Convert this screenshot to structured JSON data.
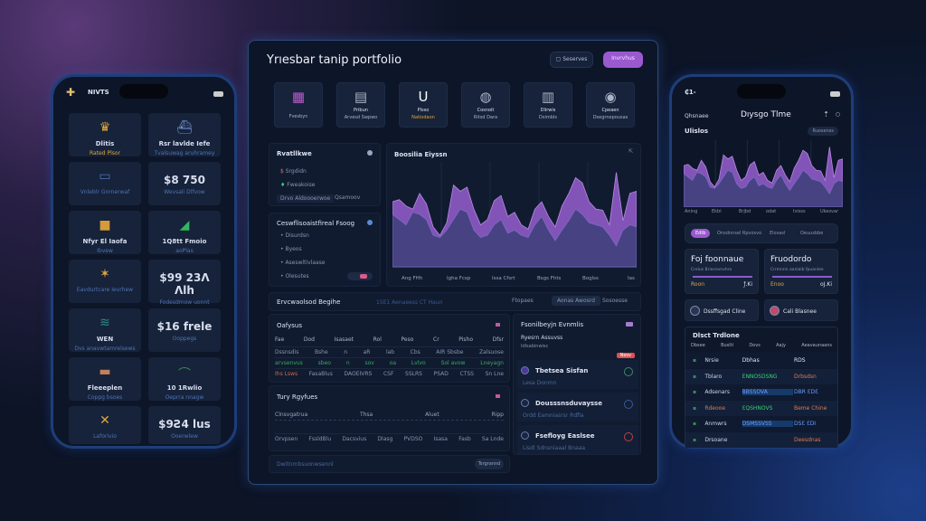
{
  "left_phone": {
    "app_name": "NIVTS",
    "tiles": [
      {
        "title": "Dlitis",
        "sub": "Rated Plsor",
        "icon": "crown-icon",
        "color": "#e0a63a"
      },
      {
        "title": "Rsr lavlde Iefe",
        "sub": "Tvalsuwag aruhramey",
        "icon": "ship-icon",
        "color": "#6f8ccb"
      },
      {
        "title": "",
        "sub": "Vnleblr Gnrnerwaf",
        "icon": "laptop-icon",
        "color": "#4f73b8"
      },
      {
        "title": "$8 750",
        "sub": "Wevsali Dlfvow",
        "icon": "",
        "color": "#fff"
      },
      {
        "title": "Nfyr El Iaofa",
        "sub": "Ibvew",
        "icon": "box-icon",
        "color": "#d59a3a"
      },
      {
        "title": "1Q8tt Fmoio",
        "sub": "aoPlas",
        "icon": "chart-icon",
        "color": "#2fb860"
      },
      {
        "title": "",
        "sub": "Eavdurtcare Ievrhew",
        "icon": "star-icon",
        "color": "#e0a63a"
      },
      {
        "title": "$99 23Λ Λlh",
        "sub": "Fodesdmow uonnt",
        "icon": "",
        "color": "#fff"
      },
      {
        "title": "WEN",
        "sub": "Dvs anavwtamrelsews",
        "icon": "wave-icon",
        "color": "#2f8a8a"
      },
      {
        "title": "$16 frele",
        "sub": "Ooppegs",
        "icon": "",
        "color": "#fff"
      },
      {
        "title": "Fleeeplen",
        "sub": "Coppg bsoes",
        "icon": "bar-icon",
        "color": "#c08060"
      },
      {
        "title": "10 1Rwlio",
        "sub": "Oeprra nnagw",
        "icon": "hill-icon",
        "color": "#3a8a5a"
      },
      {
        "title": "",
        "sub": "Laforivio",
        "icon": "knot-icon",
        "color": "#e0a63a"
      },
      {
        "title": "$9Ƨ4 lus",
        "sub": "Ooerwlew",
        "icon": "",
        "color": "#fff"
      }
    ]
  },
  "main": {
    "title": "Yrıesbar tanip portfolio",
    "btn_secondary": "Seserves",
    "btn_primary": "Invrvhus",
    "accent": "#9b59d0",
    "icon_cards": [
      {
        "label": "",
        "sub": "Fvesbyn",
        "icon": "gallery-icon"
      },
      {
        "label": "Pribun",
        "sub": "Arvesd Swpwo",
        "icon": "document-icon"
      },
      {
        "label": "Plsso",
        "sub": "Natiodaon",
        "icon": "magnet-icon"
      },
      {
        "label": "Cosnoit",
        "sub": "Ritsd Dara",
        "icon": "shield-icon"
      },
      {
        "label": "Dlirwis",
        "sub": "Dsimbls",
        "icon": "server-icon"
      },
      {
        "label": "Cpeaen",
        "sub": "Dsegrnepousas",
        "icon": "coin-icon"
      }
    ],
    "positions": {
      "title": "Rvatllkwe",
      "items": [
        "Srgdidn",
        "Fweakoise"
      ],
      "chip1": "Drvo Aldoooerwoe",
      "chip2": "Qsamoov"
    },
    "prefs": {
      "title": "Ceswflisoaistfireal Fsoog",
      "items": [
        "Disurdsn",
        "Byeos",
        "Aseswltivlaase",
        "Olesutes"
      ]
    },
    "chart": {
      "title": "Boosilia Eiyssn"
    },
    "bar": {
      "title": "Ervcwaolsod Begihe",
      "info": "15E1 Aenaeess  CT Haun",
      "tabs": [
        "Ftopaes",
        "Aonas Awosrd",
        "Sosoesse"
      ]
    },
    "orders": {
      "title": "Oafysus",
      "headers": [
        "Fae",
        "Dod",
        "Isasaet",
        "Rol",
        "Peso",
        "Cr",
        "Pisho",
        "Dfsr"
      ],
      "rows": [
        [
          "Dssnsdis",
          "Bshe",
          "n",
          "aR",
          "lab",
          "Cbs",
          "AIR Sbsbe",
          "Zalsuose"
        ],
        [
          "arvsenvus",
          "sbeo",
          "n",
          "sov",
          "oa",
          "Lvlvo",
          "Sol avow",
          "Lneyagn"
        ],
        [
          "Ihs Lsws",
          "FasaBlus",
          "DAOEIVRS",
          "CSF",
          "SSLRS",
          "PSAD",
          "CTSS",
          "Sn Lne"
        ]
      ]
    },
    "trades": {
      "title": "Tury Rgyfues",
      "labels": [
        "Clnsvgatrua",
        "Thsa",
        "Aluet",
        "Ripp"
      ],
      "rows": [
        [
          "Orvpsen",
          "FssldBlu",
          "Dacsvius",
          "Dlasg",
          "PVDSO",
          "Isasa",
          "Fasb",
          "Sa Lnde"
        ]
      ]
    },
    "footer": {
      "text": "Dwitnrnbsuonwsennl",
      "btn": "Tsrgrannd"
    },
    "events": {
      "title": "Fsonilbeyjn Evnmlis",
      "sub": "Ryesrn Assuvss",
      "date": "Idlsabinwisc",
      "badge": "Nesv",
      "items": [
        {
          "title": "Tbetsea Sisfan",
          "meta": "Lesa  Donmn"
        },
        {
          "title": "Dousssnsduvaysse",
          "meta": "Ordd  Eamniasrsr Rdfia"
        },
        {
          "title": "Fsefloyg Easlsee",
          "meta": "Lisdl  Sdnsniaaal Bnaaa"
        }
      ]
    }
  },
  "right_phone": {
    "status": "₵1-",
    "nav_left": "Qhsnaee",
    "title": "Dıysgo Tlme",
    "section": "Ulislos",
    "chip": "Ruosenss",
    "x_ticks": [
      "Aning",
      "Ekbl",
      "Brjbd",
      "odat",
      "Ivisss",
      "Ukesvar"
    ],
    "filters": [
      "Edtb",
      "Onsdnnsel Rpvosvo",
      "Elosasl",
      "Oeuusbbe"
    ],
    "cards": [
      {
        "title": "Foj fɒonnaue",
        "sub": "Crelus Briocevnvhro",
        "tag": "Roon",
        "val": "ƒ.Ki"
      },
      {
        "title": "Fruodordo",
        "sub": "Crrmnnn aanlaib fpuanlee",
        "tag": "Enoo",
        "val": "oJ.Ki"
      }
    ],
    "pills": [
      "Dssffsgad Cline",
      "Cali Blasnee"
    ],
    "table_title": "Dlsct Trdlone",
    "headers": [
      "Dbsee",
      "Buslti",
      "Dovs",
      "Aajy",
      "Aeavaunaans"
    ],
    "rows": [
      [
        "Nrsie",
        "Dbhas",
        "RDS"
      ],
      [
        "Tblaro",
        "ENNOSDSNG",
        "Drbsdsn"
      ],
      [
        "Adsenars",
        "BBSSOVA",
        "DBR ƐDƐ"
      ],
      [
        "Rdeooe",
        "ƐQSHNOVS",
        "Beme Chine"
      ],
      [
        "Anmwrs",
        "DSMSSVSS",
        "DSƐ ƐDI"
      ],
      [
        "Drsoane",
        "",
        "Deesdnas"
      ]
    ]
  },
  "chart_data": {
    "type": "area",
    "title": "Boosilia Eiyssn",
    "x_ticks": [
      "Ang FHh",
      "Igha Fcsp",
      "Issa Cfsrt",
      "Bsgs Fhts",
      "Boglss",
      "Ias Prwh"
    ],
    "series": [
      {
        "color": "#8f5bc8",
        "values": [
          62,
          64,
          58,
          55,
          70,
          60,
          38,
          30,
          42,
          78,
          72,
          76,
          55,
          40,
          45,
          63,
          68,
          48,
          52,
          40,
          36,
          55,
          62,
          48,
          38,
          58,
          70,
          85,
          80,
          62,
          55,
          54,
          40,
          90,
          44,
          70,
          72
        ]
      },
      {
        "color": "#3d3f78",
        "values": [
          50,
          45,
          40,
          52,
          50,
          45,
          30,
          28,
          35,
          45,
          55,
          52,
          35,
          28,
          30,
          40,
          45,
          32,
          35,
          30,
          28,
          40,
          48,
          35,
          25,
          35,
          44,
          55,
          50,
          42,
          40,
          38,
          30,
          20,
          35,
          40,
          38
        ]
      }
    ],
    "ylim": [
      0,
      100
    ],
    "grid": true
  }
}
